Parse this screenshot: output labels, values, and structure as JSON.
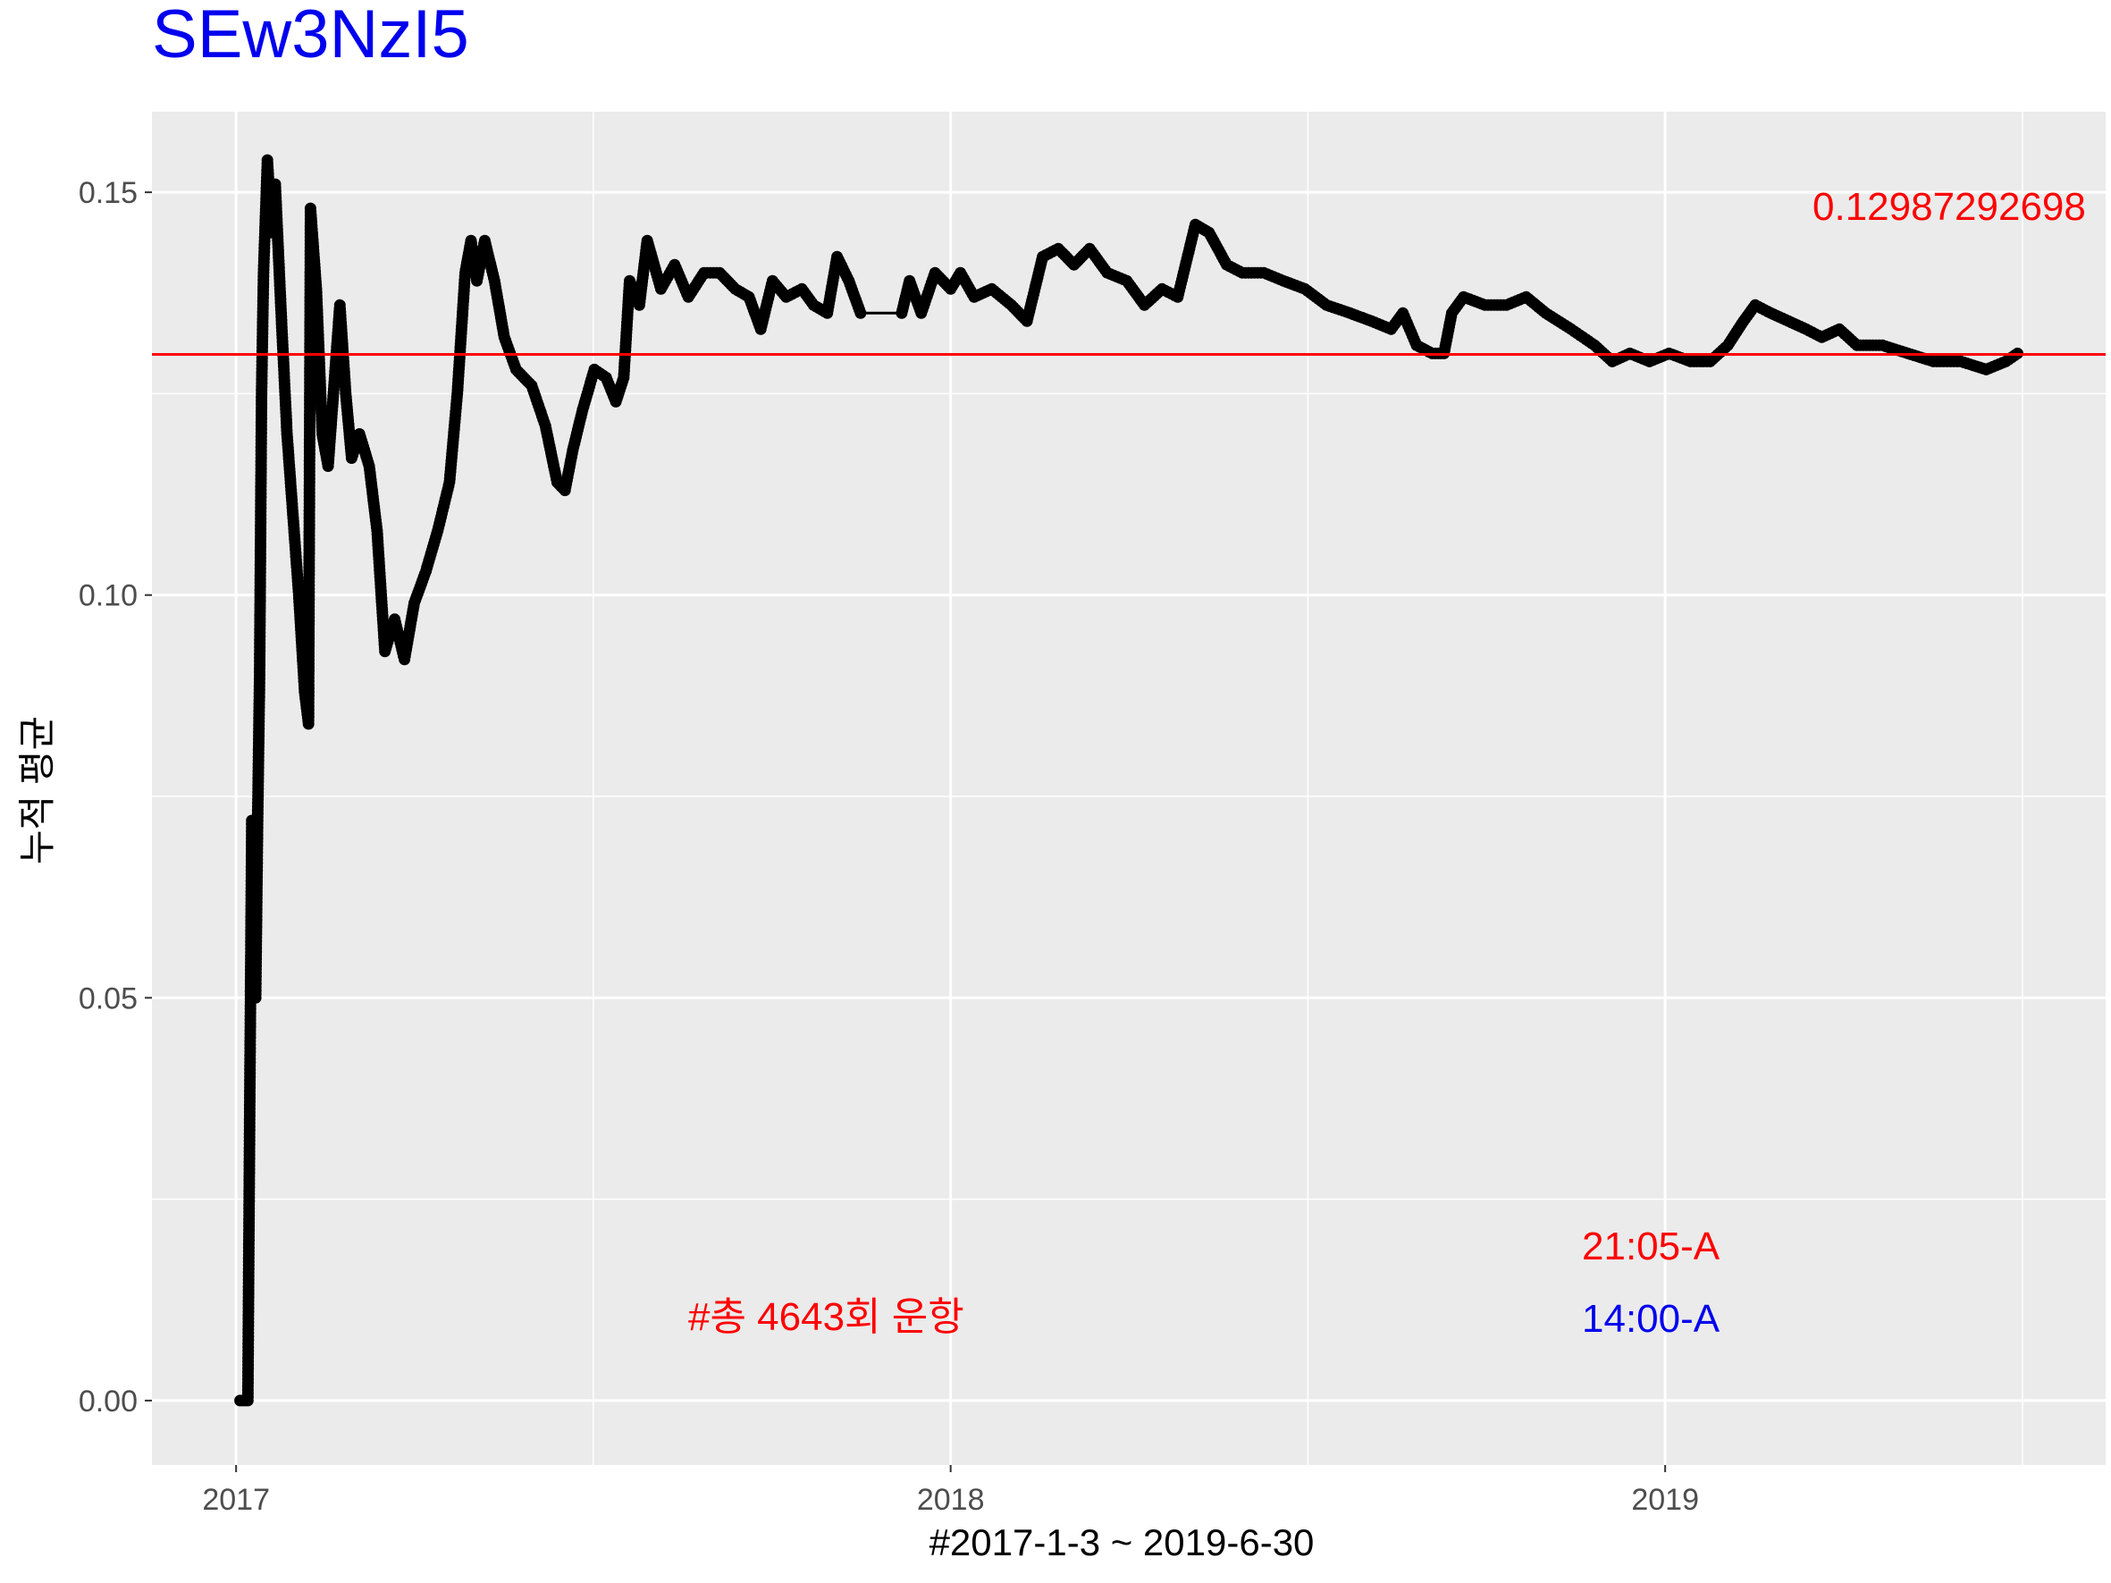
{
  "chart_data": {
    "type": "line",
    "title": "SEw3NzI5",
    "xlabel": "#2017-1-3 ~ 2019-6-30",
    "ylabel": "누적 평균",
    "x_range": [
      "2017-01-03",
      "2019-06-30"
    ],
    "x_ticks": [
      "2017",
      "2018",
      "2019"
    ],
    "ylim": [
      -0.008,
      0.16
    ],
    "y_ticks": [
      "0.00",
      "0.05",
      "0.10",
      "0.15"
    ],
    "grid": true,
    "reference_line": {
      "value": 0.12987,
      "color": "#ff0000"
    },
    "annotations": {
      "mean_value": "0.12987292698",
      "total_trips": "#총 4643회 운항",
      "time_red": "21:05-A",
      "time_blue": "14:00-A"
    },
    "series": [
      {
        "color": "#000000",
        "points": [
          [
            "2017-01-03",
            0.0
          ],
          [
            "2017-01-07",
            0.0
          ],
          [
            "2017-01-08",
            0.038
          ],
          [
            "2017-01-09",
            0.072
          ],
          [
            "2017-01-10",
            0.06
          ],
          [
            "2017-01-11",
            0.05
          ],
          [
            "2017-01-12",
            0.072
          ],
          [
            "2017-01-13",
            0.09
          ],
          [
            "2017-01-14",
            0.125
          ],
          [
            "2017-01-15",
            0.14
          ],
          [
            "2017-01-17",
            0.154
          ],
          [
            "2017-01-19",
            0.145
          ],
          [
            "2017-01-21",
            0.151
          ],
          [
            "2017-01-24",
            0.135
          ],
          [
            "2017-01-27",
            0.12
          ],
          [
            "2017-01-30",
            0.11
          ],
          [
            "2017-02-02",
            0.1
          ],
          [
            "2017-02-05",
            0.088
          ],
          [
            "2017-02-07",
            0.084
          ],
          [
            "2017-02-08",
            0.148
          ],
          [
            "2017-02-11",
            0.138
          ],
          [
            "2017-02-14",
            0.12
          ],
          [
            "2017-02-17",
            0.116
          ],
          [
            "2017-02-20",
            0.126
          ],
          [
            "2017-02-23",
            0.136
          ],
          [
            "2017-02-26",
            0.125
          ],
          [
            "2017-03-01",
            0.117
          ],
          [
            "2017-03-05",
            0.12
          ],
          [
            "2017-03-10",
            0.116
          ],
          [
            "2017-03-14",
            0.108
          ],
          [
            "2017-03-18",
            0.093
          ],
          [
            "2017-03-23",
            0.097
          ],
          [
            "2017-03-28",
            0.092
          ],
          [
            "2017-04-02",
            0.099
          ],
          [
            "2017-04-08",
            0.103
          ],
          [
            "2017-04-14",
            0.108
          ],
          [
            "2017-04-20",
            0.114
          ],
          [
            "2017-04-24",
            0.125
          ],
          [
            "2017-04-28",
            0.14
          ],
          [
            "2017-05-01",
            0.144
          ],
          [
            "2017-05-04",
            0.139
          ],
          [
            "2017-05-08",
            0.144
          ],
          [
            "2017-05-13",
            0.139
          ],
          [
            "2017-05-18",
            0.132
          ],
          [
            "2017-05-24",
            0.128
          ],
          [
            "2017-06-01",
            0.126
          ],
          [
            "2017-06-08",
            0.121
          ],
          [
            "2017-06-14",
            0.114
          ],
          [
            "2017-06-18",
            0.113
          ],
          [
            "2017-06-22",
            0.118
          ],
          [
            "2017-06-27",
            0.123
          ],
          [
            "2017-07-03",
            0.128
          ],
          [
            "2017-07-09",
            0.127
          ],
          [
            "2017-07-14",
            0.124
          ],
          [
            "2017-07-18",
            0.127
          ],
          [
            "2017-07-21",
            0.139
          ],
          [
            "2017-07-26",
            0.136
          ],
          [
            "2017-07-30",
            0.144
          ],
          [
            "2017-08-06",
            0.138
          ],
          [
            "2017-08-13",
            0.141
          ],
          [
            "2017-08-20",
            0.137
          ],
          [
            "2017-08-28",
            0.14
          ],
          [
            "2017-09-05",
            0.14
          ],
          [
            "2017-09-13",
            0.138
          ],
          [
            "2017-09-20",
            0.137
          ],
          [
            "2017-09-26",
            0.133
          ],
          [
            "2017-10-02",
            0.139
          ],
          [
            "2017-10-09",
            0.137
          ],
          [
            "2017-10-17",
            0.138
          ],
          [
            "2017-10-23",
            0.136
          ],
          [
            "2017-10-30",
            0.135
          ],
          [
            "2017-11-04",
            0.142
          ],
          [
            "2017-11-10",
            0.139
          ],
          [
            "2017-11-16",
            0.135
          ],
          [
            "2017-12-07",
            0.135
          ],
          [
            "2017-12-11",
            0.139
          ],
          [
            "2017-12-17",
            0.135
          ],
          [
            "2017-12-24",
            0.14
          ],
          [
            "2018-01-01",
            0.138
          ],
          [
            "2018-01-06",
            0.14
          ],
          [
            "2018-01-13",
            0.137
          ],
          [
            "2018-01-22",
            0.138
          ],
          [
            "2018-02-01",
            0.136
          ],
          [
            "2018-02-09",
            0.134
          ],
          [
            "2018-02-17",
            0.142
          ],
          [
            "2018-02-25",
            0.143
          ],
          [
            "2018-03-05",
            0.141
          ],
          [
            "2018-03-13",
            0.143
          ],
          [
            "2018-03-22",
            0.14
          ],
          [
            "2018-04-01",
            0.139
          ],
          [
            "2018-04-10",
            0.136
          ],
          [
            "2018-04-19",
            0.138
          ],
          [
            "2018-04-27",
            0.137
          ],
          [
            "2018-05-06",
            0.146
          ],
          [
            "2018-05-13",
            0.145
          ],
          [
            "2018-05-22",
            0.141
          ],
          [
            "2018-05-30",
            0.14
          ],
          [
            "2018-06-10",
            0.14
          ],
          [
            "2018-06-20",
            0.139
          ],
          [
            "2018-07-01",
            0.138
          ],
          [
            "2018-07-12",
            0.136
          ],
          [
            "2018-07-24",
            0.135
          ],
          [
            "2018-08-04",
            0.134
          ],
          [
            "2018-08-14",
            0.133
          ],
          [
            "2018-08-20",
            0.135
          ],
          [
            "2018-08-27",
            0.131
          ],
          [
            "2018-09-04",
            0.13
          ],
          [
            "2018-09-10",
            0.13
          ],
          [
            "2018-09-14",
            0.135
          ],
          [
            "2018-09-20",
            0.137
          ],
          [
            "2018-10-01",
            0.136
          ],
          [
            "2018-10-12",
            0.136
          ],
          [
            "2018-10-22",
            0.137
          ],
          [
            "2018-11-01",
            0.135
          ],
          [
            "2018-11-14",
            0.133
          ],
          [
            "2018-11-26",
            0.131
          ],
          [
            "2018-12-05",
            0.129
          ],
          [
            "2018-12-14",
            0.13
          ],
          [
            "2018-12-24",
            0.129
          ],
          [
            "2019-01-03",
            0.13
          ],
          [
            "2019-01-14",
            0.129
          ],
          [
            "2019-01-24",
            0.129
          ],
          [
            "2019-02-02",
            0.131
          ],
          [
            "2019-02-10",
            0.134
          ],
          [
            "2019-02-16",
            0.136
          ],
          [
            "2019-02-24",
            0.135
          ],
          [
            "2019-03-05",
            0.134
          ],
          [
            "2019-03-14",
            0.133
          ],
          [
            "2019-03-22",
            0.132
          ],
          [
            "2019-03-31",
            0.133
          ],
          [
            "2019-04-09",
            0.131
          ],
          [
            "2019-04-22",
            0.131
          ],
          [
            "2019-05-05",
            0.13
          ],
          [
            "2019-05-18",
            0.129
          ],
          [
            "2019-06-01",
            0.129
          ],
          [
            "2019-06-14",
            0.128
          ],
          [
            "2019-06-24",
            0.129
          ],
          [
            "2019-06-30",
            0.13
          ]
        ]
      }
    ]
  }
}
